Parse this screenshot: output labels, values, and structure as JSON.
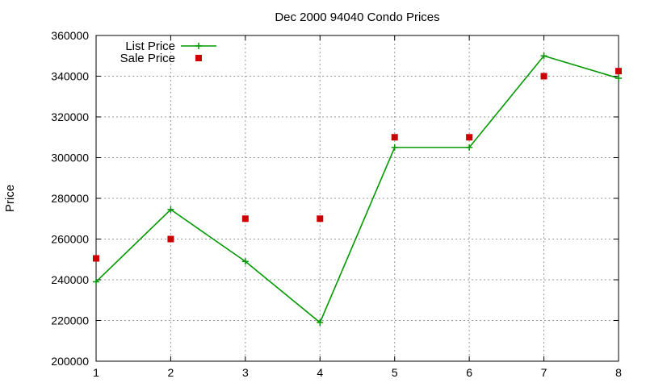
{
  "chart_data": {
    "type": "line",
    "title": "Dec 2000 94040 Condo Prices",
    "xlabel": "",
    "ylabel": "Price",
    "x": [
      1,
      2,
      3,
      4,
      5,
      6,
      7,
      8
    ],
    "xlim": [
      1,
      8
    ],
    "ylim": [
      200000,
      360000
    ],
    "xticks": [
      "1",
      "2",
      "3",
      "4",
      "5",
      "6",
      "7",
      "8"
    ],
    "yticks": [
      "200000",
      "220000",
      "240000",
      "260000",
      "280000",
      "300000",
      "320000",
      "340000",
      "360000"
    ],
    "grid": true,
    "legend_position": "top-left",
    "series": [
      {
        "name": "List Price",
        "kind": "line-with-plus-markers",
        "color": "#009900",
        "values": [
          239000,
          274500,
          249000,
          219000,
          305000,
          305000,
          350000,
          339000
        ]
      },
      {
        "name": "Sale Price",
        "kind": "square-markers",
        "color": "#cc0000",
        "values": [
          250500,
          260000,
          270000,
          270000,
          310000,
          310000,
          340000,
          342500
        ]
      }
    ]
  }
}
